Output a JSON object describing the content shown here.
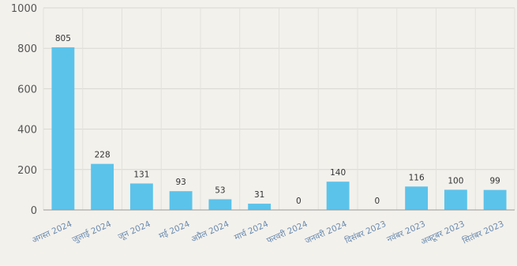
{
  "chart_data": {
    "type": "bar",
    "categories": [
      "अगस्त 2024",
      "जुलाई 2024",
      "जून 2024",
      "मई 2024",
      "अप्रैल 2024",
      "मार्च 2024",
      "फरवरी 2024",
      "जनवरी 2024",
      "दिसंबर 2023",
      "नवंबर 2023",
      "अक्टूबर 2023",
      "सितंबर 2023"
    ],
    "values": [
      805,
      228,
      131,
      93,
      53,
      31,
      0,
      140,
      0,
      116,
      100,
      99
    ],
    "title": "",
    "xlabel": "",
    "ylabel": "",
    "ylim": [
      0,
      1000
    ],
    "yticks": [
      0,
      200,
      400,
      600,
      800,
      1000
    ],
    "grid": true,
    "bar_color": "#5bc3ea"
  }
}
